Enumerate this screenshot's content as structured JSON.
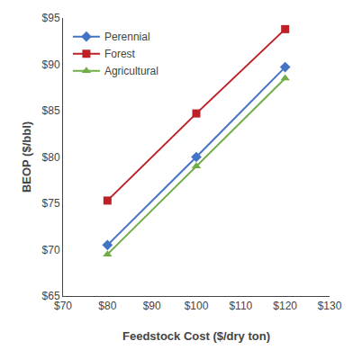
{
  "chart_data": {
    "type": "line",
    "xlabel": "Feedstock Cost ($/dry ton)",
    "ylabel": "BEOP ($/bbl)",
    "x": [
      80,
      100,
      120
    ],
    "series": [
      {
        "name": "Perennial",
        "color": "#4472C4",
        "marker": "diamond",
        "values": [
          70.5,
          80.0,
          89.7
        ]
      },
      {
        "name": "Forest",
        "color": "#BE2026",
        "marker": "square",
        "values": [
          75.3,
          84.7,
          93.8
        ]
      },
      {
        "name": "Agricultural",
        "color": "#70AD47",
        "marker": "triangle-up",
        "values": [
          69.5,
          79.0,
          88.5
        ]
      }
    ],
    "xlim": [
      70,
      130
    ],
    "ylim": [
      65,
      95
    ],
    "xticks": [
      {
        "value": 70,
        "label": "$70"
      },
      {
        "value": 80,
        "label": "$80"
      },
      {
        "value": 90,
        "label": "$90"
      },
      {
        "value": 100,
        "label": "$100"
      },
      {
        "value": 110,
        "label": "$110"
      },
      {
        "value": 120,
        "label": "$120"
      },
      {
        "value": 130,
        "label": "$130"
      }
    ],
    "yticks": [
      {
        "value": 65,
        "label": "$65"
      },
      {
        "value": 70,
        "label": "$70"
      },
      {
        "value": 75,
        "label": "$75"
      },
      {
        "value": 80,
        "label": "$80"
      },
      {
        "value": 85,
        "label": "$85"
      },
      {
        "value": 90,
        "label": "$90"
      },
      {
        "value": 95,
        "label": "$95"
      }
    ],
    "legend": "upper left",
    "grid": false
  }
}
